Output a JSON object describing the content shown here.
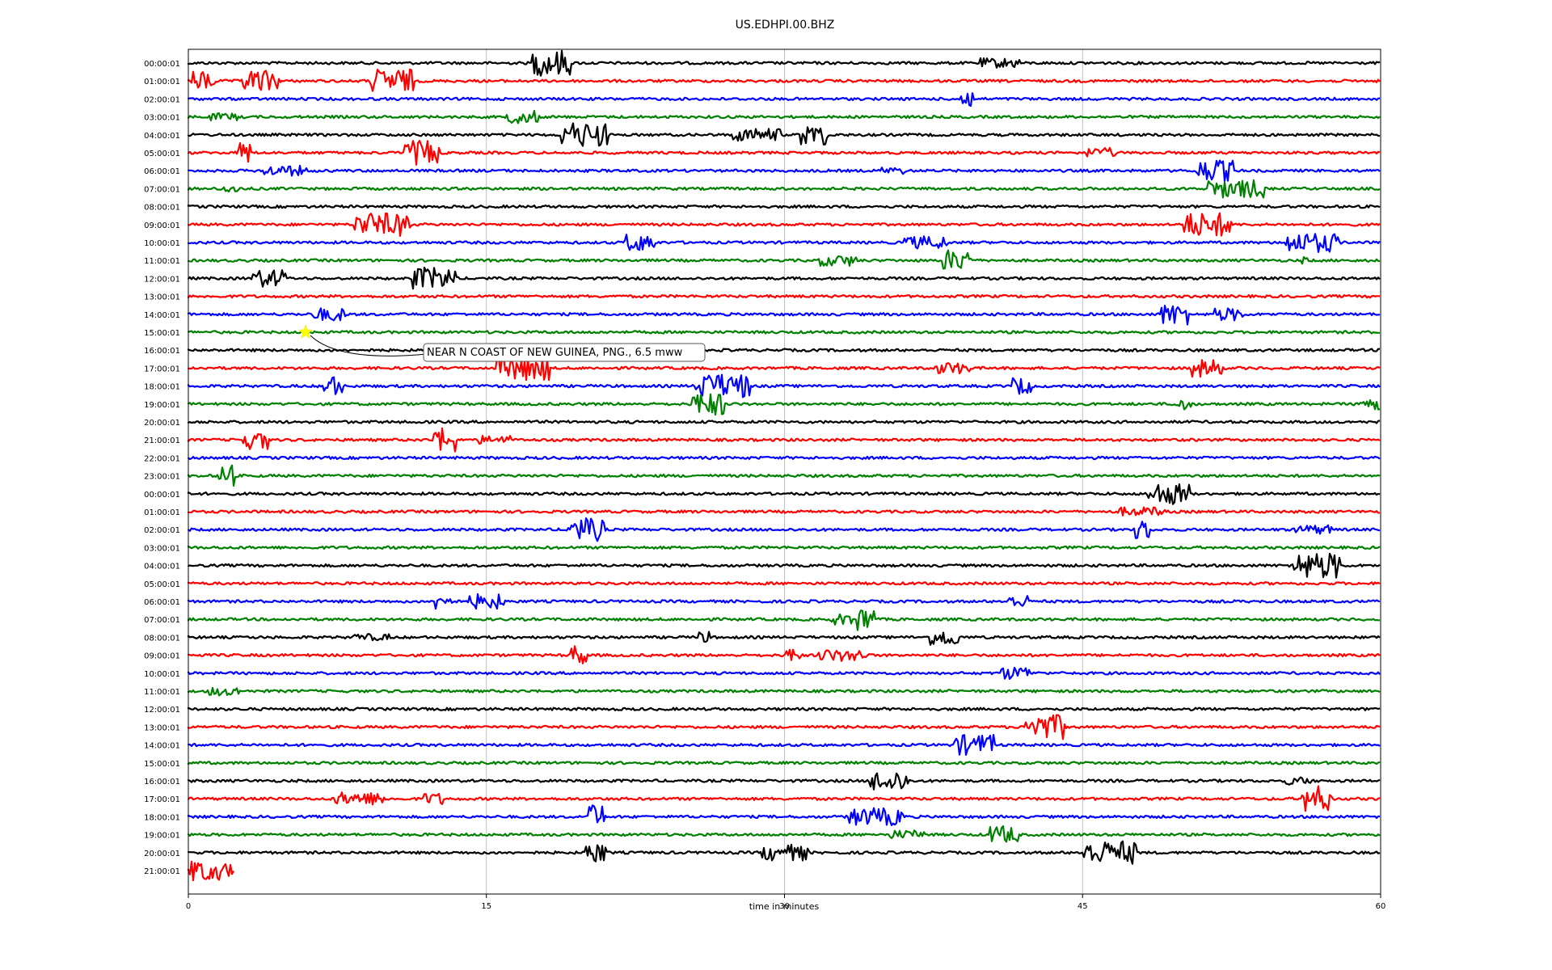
{
  "chart_data": {
    "type": "line",
    "title": "US.EDHPI.00.BHZ",
    "xlabel": "time in minutes",
    "ylabel": "",
    "xlim": [
      0,
      60
    ],
    "xticks": [
      0,
      15,
      30,
      45,
      60
    ],
    "grid": "vertical",
    "color_cycle": [
      "#000000",
      "#ff0000",
      "#0000ff",
      "#008000"
    ],
    "row_labels": [
      "00:00:01",
      "01:00:01",
      "02:00:01",
      "03:00:01",
      "04:00:01",
      "05:00:01",
      "06:00:01",
      "07:00:01",
      "08:00:01",
      "09:00:01",
      "10:00:01",
      "11:00:01",
      "12:00:01",
      "13:00:01",
      "14:00:01",
      "15:00:01",
      "16:00:01",
      "17:00:01",
      "18:00:01",
      "19:00:01",
      "20:00:01",
      "21:00:01",
      "22:00:01",
      "23:00:01",
      "00:00:01",
      "01:00:01",
      "02:00:01",
      "03:00:01",
      "04:00:01",
      "05:00:01",
      "06:00:01",
      "07:00:01",
      "08:00:01",
      "09:00:01",
      "10:00:01",
      "11:00:01",
      "12:00:01",
      "13:00:01",
      "14:00:01",
      "15:00:01",
      "16:00:01",
      "17:00:01",
      "18:00:01",
      "19:00:01",
      "20:00:01",
      "21:00:01"
    ],
    "last_row_end_minute": 2.3,
    "events": [
      {
        "row": 15,
        "minute": 5.9,
        "label": "NEAR N COAST OF NEW GUINEA, PNG., 6.5 mww",
        "marker": "star",
        "marker_color": "#ffff00"
      }
    ]
  }
}
